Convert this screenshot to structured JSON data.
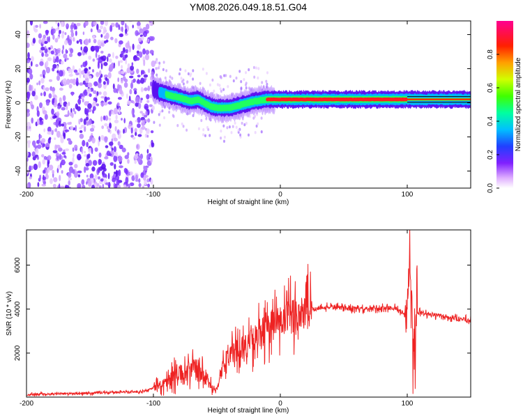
{
  "title": "YM08.2026.049.18.51.G04",
  "chart_data": [
    {
      "type": "heatmap",
      "title": "YM08.2026.049.18.51.G04",
      "xlabel": "Height of straight line (km)",
      "ylabel": "Frequency (Hz)",
      "xlim": [
        -200,
        150
      ],
      "ylim": [
        -50,
        48
      ],
      "xticks": [
        -200,
        -100,
        0,
        100
      ],
      "yticks": [
        -40,
        -20,
        0,
        20,
        40
      ],
      "colorbar": {
        "label": "Normalized spectral amplitude",
        "range": [
          0,
          1
        ],
        "ticks": [
          "0.0",
          "0.2",
          "0.4",
          "0.6",
          "0.8"
        ],
        "tick_values": [
          0.0,
          0.2,
          0.4,
          0.6,
          0.8
        ],
        "colors": [
          "#ffffff",
          "#c070ff",
          "#4000ff",
          "#0080ff",
          "#00ffff",
          "#00ff40",
          "#ffff00",
          "#ff8000",
          "#ff0000",
          "#ff00a0"
        ]
      },
      "signal_center_hz": [
        [
          -100,
          8
        ],
        [
          -95,
          6
        ],
        [
          -90,
          5
        ],
        [
          -85,
          4
        ],
        [
          -80,
          3
        ],
        [
          -75,
          2
        ],
        [
          -70,
          1
        ],
        [
          -65,
          2
        ],
        [
          -60,
          0
        ],
        [
          -55,
          -2
        ],
        [
          -50,
          -3
        ],
        [
          -45,
          -3
        ],
        [
          -40,
          -3
        ],
        [
          -35,
          -2
        ],
        [
          -30,
          -1
        ],
        [
          -25,
          0
        ],
        [
          -20,
          1
        ],
        [
          -10,
          2
        ],
        [
          0,
          2
        ],
        [
          20,
          2
        ],
        [
          50,
          2
        ],
        [
          75,
          2
        ],
        [
          90,
          2
        ],
        [
          100,
          2
        ],
        [
          150,
          2
        ]
      ],
      "noise_region_km": [
        -200,
        -100
      ]
    },
    {
      "type": "line",
      "xlabel": "Height of straight line (km)",
      "ylabel": "SNR (10 * v/v)",
      "xlim": [
        -200,
        150
      ],
      "ylim": [
        0,
        7600
      ],
      "xticks": [
        -200,
        -100,
        0,
        100
      ],
      "yticks": [
        2000,
        4000,
        6000
      ],
      "series": [
        {
          "name": "SNR",
          "color": "#ee2222",
          "x": [
            -200,
            -150,
            -110,
            -100,
            -95,
            -90,
            -85,
            -80,
            -75,
            -70,
            -65,
            -60,
            -55,
            -50,
            -45,
            -40,
            -35,
            -30,
            -25,
            -20,
            -15,
            -10,
            -5,
            0,
            5,
            10,
            15,
            20,
            25,
            30,
            40,
            50,
            60,
            70,
            80,
            90,
            95,
            100,
            102,
            105,
            108,
            110,
            120,
            130,
            140,
            150
          ],
          "values": [
            120,
            180,
            250,
            400,
            550,
            700,
            900,
            1100,
            1000,
            1300,
            1200,
            900,
            500,
            350,
            1400,
            1900,
            2100,
            2300,
            2400,
            2600,
            2900,
            3200,
            3300,
            3400,
            3500,
            3700,
            3800,
            3900,
            4000,
            4050,
            4100,
            4050,
            4000,
            4000,
            4050,
            4050,
            3900,
            3600,
            6500,
            1500,
            3800,
            3850,
            3750,
            3650,
            3550,
            3500
          ]
        }
      ]
    }
  ]
}
